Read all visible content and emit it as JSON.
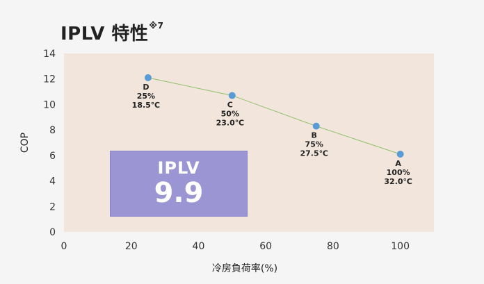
{
  "page": {
    "title": "IPLV 特性",
    "title_note": "※7"
  },
  "iplv": {
    "label": "IPLV",
    "value": "9.9"
  },
  "chart_data": {
    "type": "line",
    "xlabel": "冷房負荷率(%)",
    "ylabel": "COP",
    "xlim": [
      0,
      110
    ],
    "ylim": [
      0,
      14
    ],
    "x_ticks": [
      0,
      20,
      40,
      60,
      80,
      100
    ],
    "y_ticks": [
      0,
      2,
      4,
      6,
      8,
      10,
      12,
      14
    ],
    "grid": false,
    "colors": {
      "plot_bg": "#f2e6dc",
      "line": "#8fbf6a",
      "marker": "#5b9bd5"
    },
    "points": [
      {
        "x": 25,
        "y": 12.1,
        "labels": [
          "D",
          "25%",
          "18.5℃"
        ]
      },
      {
        "x": 50,
        "y": 10.7,
        "labels": [
          "C",
          "50%",
          "23.0℃"
        ]
      },
      {
        "x": 75,
        "y": 8.3,
        "labels": [
          "B",
          "75%",
          "27.5℃"
        ]
      },
      {
        "x": 100,
        "y": 6.1,
        "labels": [
          "A",
          "100%",
          "32.0℃"
        ]
      }
    ]
  }
}
